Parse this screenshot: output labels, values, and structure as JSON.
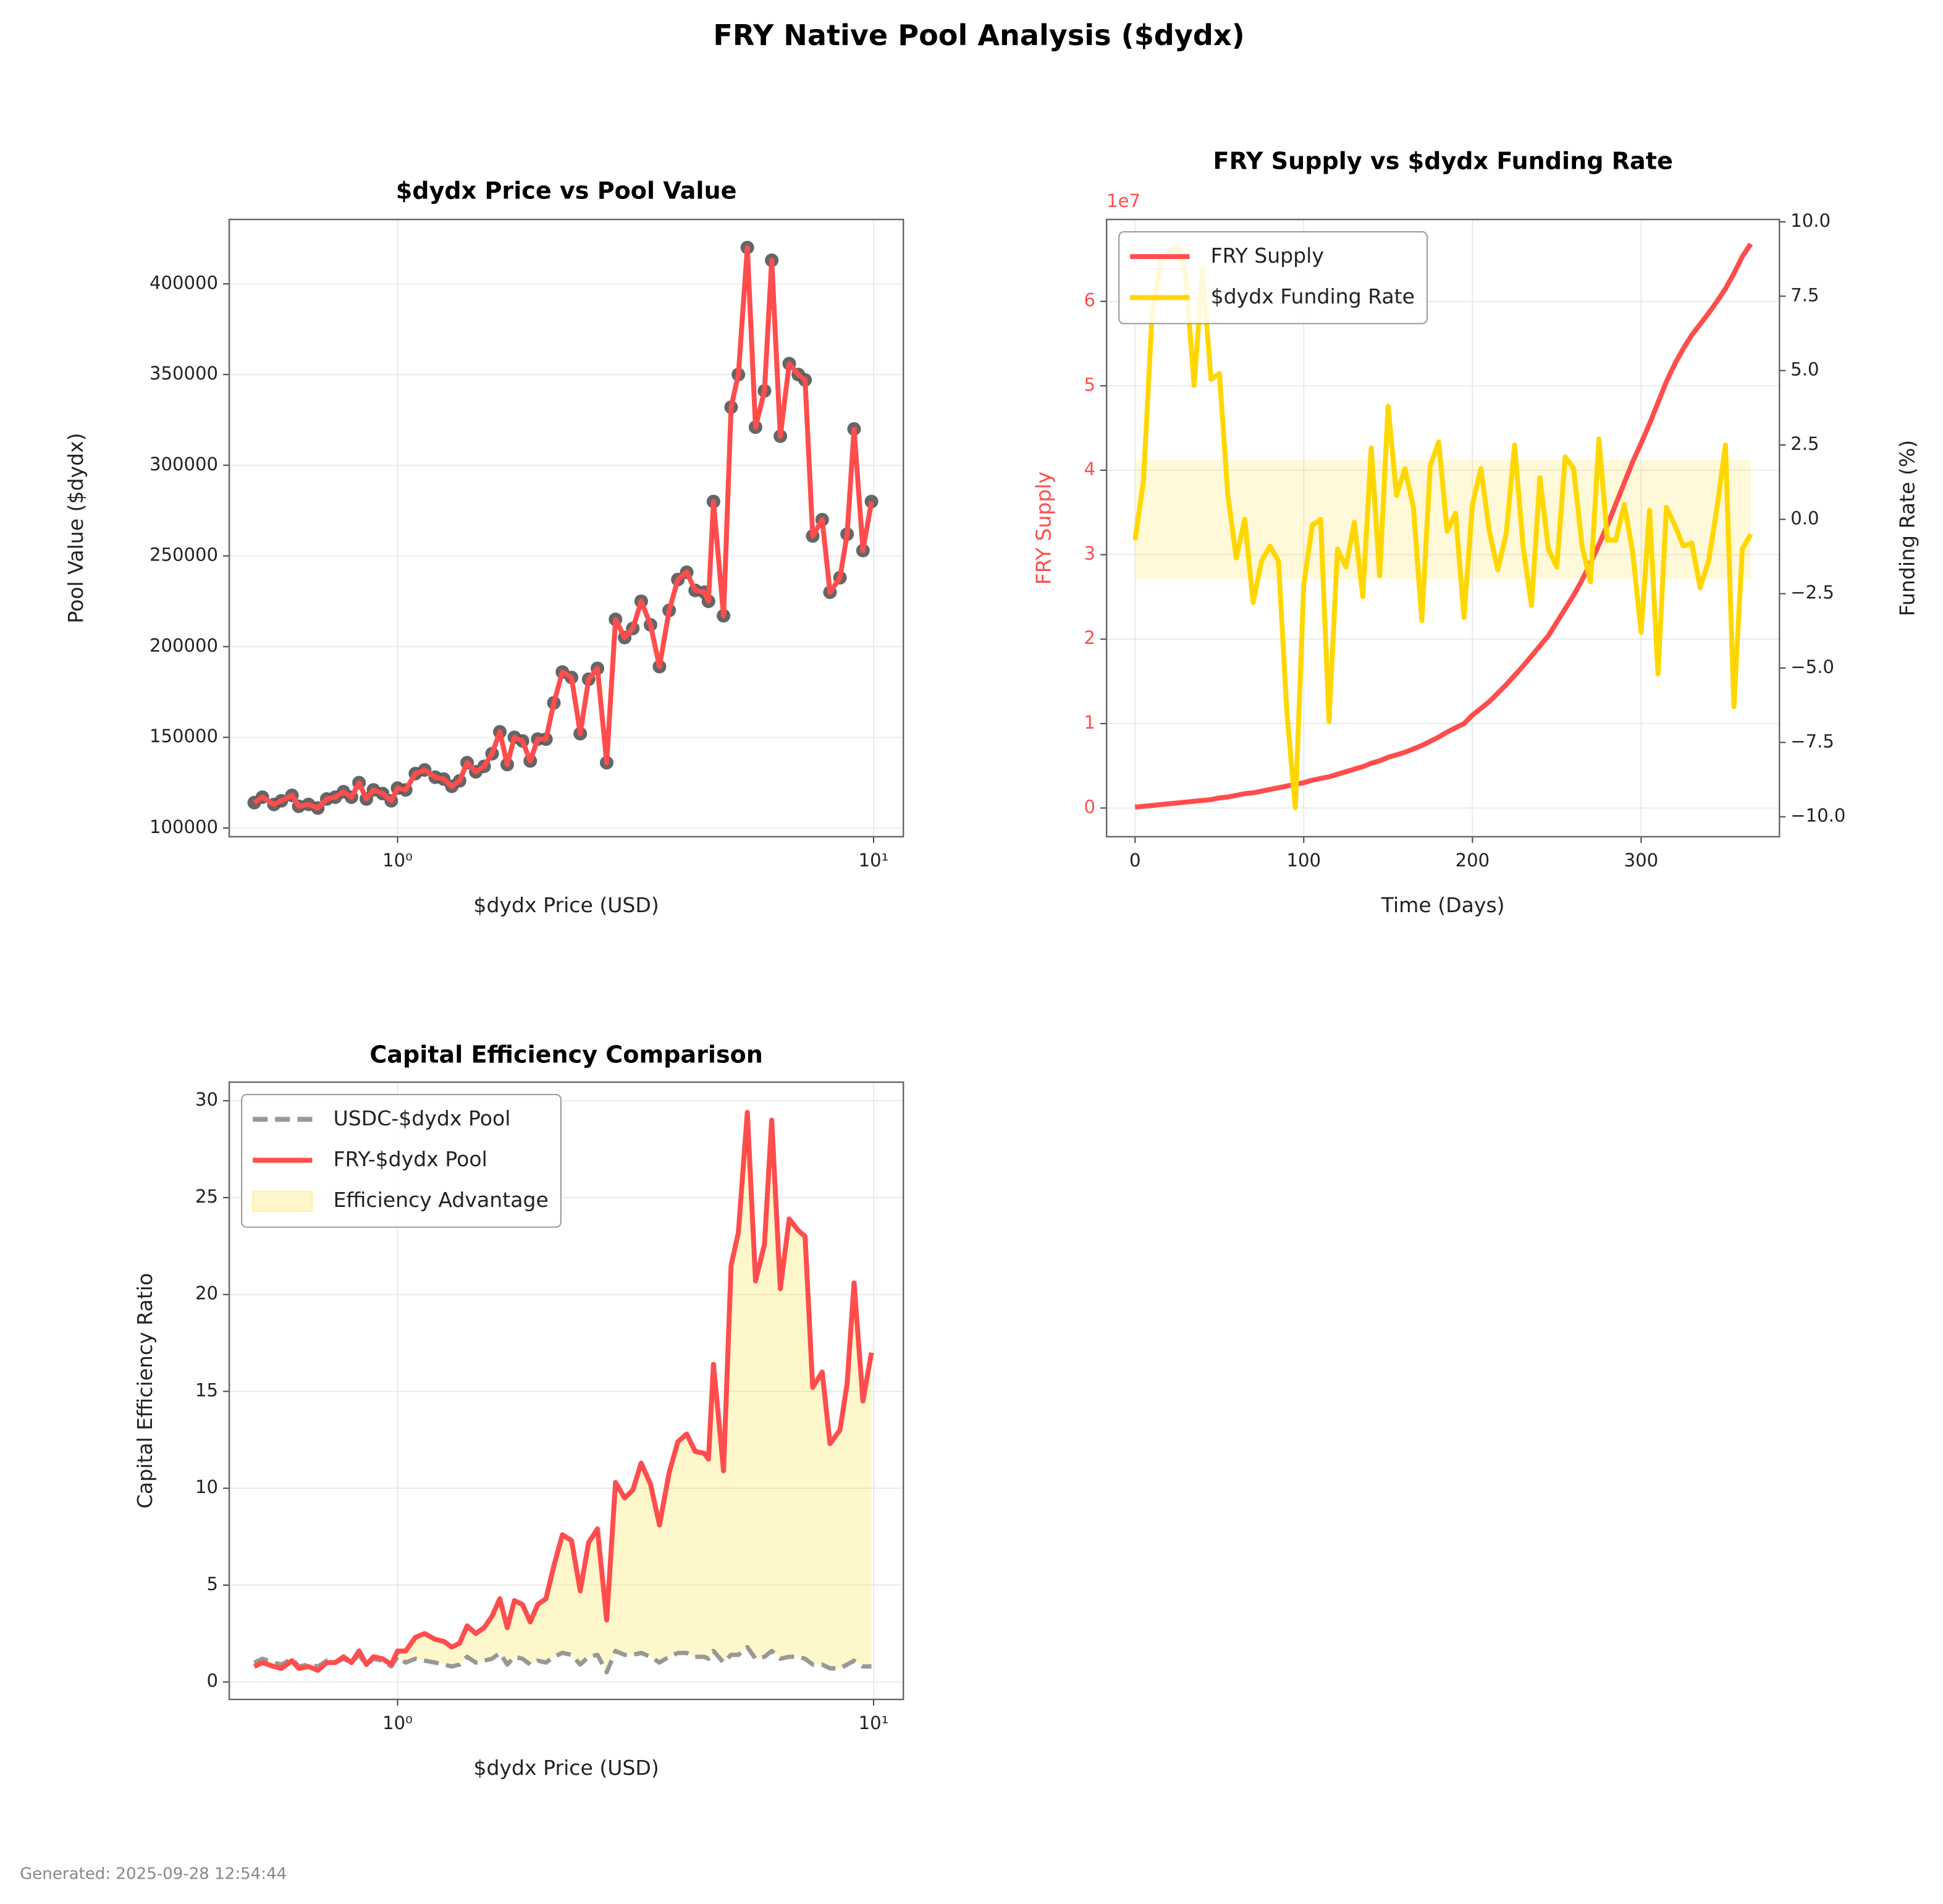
{
  "title": "FRY Native Pool Analysis ($dydx)",
  "footer": "Generated: 2025-09-28 12:54:44",
  "chart_data": [
    {
      "type": "line",
      "title": "$dydx Price vs Pool Value",
      "xlabel": "$dydx Price (USD)",
      "ylabel": "Pool Value ($dydx)",
      "xscale": "log",
      "grid": true,
      "x": [
        0.5,
        0.52,
        0.55,
        0.57,
        0.6,
        0.62,
        0.65,
        0.68,
        0.71,
        0.74,
        0.77,
        0.8,
        0.83,
        0.86,
        0.89,
        0.93,
        0.97,
        1.0,
        1.04,
        1.09,
        1.14,
        1.2,
        1.25,
        1.3,
        1.35,
        1.4,
        1.46,
        1.52,
        1.58,
        1.64,
        1.7,
        1.76,
        1.83,
        1.9,
        1.97,
        2.05,
        2.13,
        2.22,
        2.32,
        2.42,
        2.52,
        2.63,
        2.75,
        2.87,
        3.0,
        3.12,
        3.25,
        3.4,
        3.55,
        3.72,
        3.88,
        4.05,
        4.22,
        4.41,
        4.5,
        4.61,
        4.84,
        5.02,
        5.2,
        5.43,
        5.65,
        5.9,
        6.11,
        6.37,
        6.65,
        6.95,
        7.18,
        7.45,
        7.8,
        8.1,
        8.5,
        8.8,
        9.1,
        9.5,
        9.9
      ],
      "series": [
        {
          "color": "#ff4d4d",
          "marker_color": "#555555",
          "values": [
            114000,
            117000,
            113000,
            115000,
            118000,
            112000,
            113000,
            111000,
            116000,
            117000,
            120000,
            117000,
            125000,
            116000,
            121000,
            119000,
            115000,
            122000,
            121000,
            130000,
            132000,
            128000,
            127000,
            123000,
            126000,
            136000,
            131000,
            134000,
            141000,
            153000,
            135000,
            150000,
            148000,
            137000,
            149000,
            149000,
            169000,
            186000,
            183000,
            152000,
            182000,
            188000,
            136000,
            215000,
            205000,
            210000,
            225000,
            212000,
            189000,
            220000,
            237000,
            241000,
            231000,
            230000,
            225000,
            280000,
            217000,
            332000,
            350000,
            420000,
            321000,
            341000,
            413000,
            316000,
            356000,
            350000,
            347000,
            261000,
            270000,
            230000,
            238000,
            262000,
            320000,
            253000,
            280000
          ]
        }
      ],
      "xlim": [
        0.443,
        11.55
      ],
      "ylim": [
        95200,
        435500
      ],
      "xticks": [
        {
          "value": 1,
          "label": "10⁰"
        },
        {
          "value": 10,
          "label": "10¹"
        }
      ],
      "yticks": [
        100000,
        150000,
        200000,
        250000,
        300000,
        350000,
        400000
      ]
    },
    {
      "type": "line",
      "title": "FRY Supply vs $dydx Funding Rate",
      "xlabel": "Time (Days)",
      "ylabel": "FRY Supply",
      "ylabel_color": "#ff4d4d",
      "y2label": "Funding Rate (%)",
      "y_offset_label": "1e7",
      "grid": true,
      "legend": "upper left",
      "x": [
        0,
        5,
        10,
        15,
        20,
        25,
        30,
        35,
        40,
        45,
        50,
        55,
        60,
        65,
        70,
        75,
        80,
        85,
        90,
        95,
        100,
        105,
        110,
        115,
        120,
        125,
        130,
        135,
        140,
        145,
        150,
        155,
        160,
        165,
        170,
        175,
        180,
        185,
        190,
        195,
        200,
        205,
        210,
        215,
        220,
        225,
        230,
        235,
        240,
        245,
        250,
        255,
        260,
        265,
        270,
        275,
        280,
        285,
        290,
        295,
        300,
        305,
        310,
        315,
        320,
        325,
        330,
        335,
        340,
        345,
        350,
        355,
        360,
        365
      ],
      "series": [
        {
          "name": "FRY Supply",
          "color": "#ff4d4d",
          "values": [
            100000,
            200000,
            300000,
            400000,
            500000,
            600000,
            700000,
            800000,
            900000,
            1000000,
            1200000,
            1300000,
            1500000,
            1700000,
            1800000,
            2000000,
            2200000,
            2400000,
            2600000,
            2800000,
            3000000,
            3300000,
            3500000,
            3700000,
            4000000,
            4300000,
            4600000,
            4900000,
            5300000,
            5600000,
            6000000,
            6300000,
            6600000,
            7000000,
            7400000,
            7900000,
            8400000,
            9000000,
            9500000,
            10000000,
            11000000,
            11800000,
            12600000,
            13600000,
            14600000,
            15700000,
            16800000,
            18000000,
            19200000,
            20400000,
            22000000,
            23600000,
            25200000,
            27000000,
            29000000,
            31200000,
            33500000,
            36000000,
            38500000,
            41000000,
            43200000,
            45500000,
            48000000,
            50500000,
            52600000,
            54400000,
            56000000,
            57300000,
            58600000,
            60000000,
            61500000,
            63300000,
            65300000,
            66800000
          ]
        },
        {
          "name": "$dydx Funding Rate",
          "color": "#ffd700",
          "axis": "y2",
          "values": [
            -0.7,
            1.3,
            6.8,
            8.6,
            9.0,
            9.2,
            8.2,
            4.5,
            8.4,
            4.7,
            4.9,
            0.8,
            -1.3,
            0.0,
            -2.8,
            -1.4,
            -0.9,
            -1.4,
            -6.5,
            -9.7,
            -2.2,
            -0.2,
            0.0,
            -6.8,
            -1.0,
            -1.6,
            -0.1,
            -2.6,
            2.4,
            -1.9,
            3.8,
            0.8,
            1.7,
            0.4,
            -3.4,
            1.8,
            2.6,
            -0.4,
            0.2,
            -3.3,
            0.5,
            1.7,
            -0.4,
            -1.7,
            -0.5,
            2.5,
            -0.9,
            -2.9,
            1.4,
            -1.0,
            -1.6,
            2.1,
            1.7,
            -0.9,
            -2.1,
            2.7,
            -0.7,
            -0.7,
            0.5,
            -1.1,
            -3.8,
            0.3,
            -5.2,
            0.4,
            -0.2,
            -0.9,
            -0.8,
            -2.3,
            -1.4,
            0.4,
            2.5,
            -6.3,
            -1.0,
            -0.5
          ]
        }
      ],
      "band": {
        "x": [
          0,
          365
        ],
        "y2": [
          -2,
          2
        ],
        "color": "#ffd700"
      },
      "xlim": [
        -16.9,
        382
      ],
      "ylim": [
        -3400000,
        69700000
      ],
      "y2lim": [
        -10.67,
        10.08
      ],
      "xticks": [
        0,
        100,
        200,
        300
      ],
      "yticks": [
        0,
        {
          "value": 10000000,
          "label": "1"
        },
        {
          "value": 20000000,
          "label": "2"
        },
        {
          "value": 30000000,
          "label": "3"
        },
        {
          "value": 40000000,
          "label": "4"
        },
        {
          "value": 50000000,
          "label": "5"
        },
        {
          "value": 60000000,
          "label": "6"
        }
      ],
      "y2ticks": [
        {
          "value": -10,
          "label": "−10.0"
        },
        {
          "value": -7.5,
          "label": "−7.5"
        },
        {
          "value": -5,
          "label": "−5.0"
        },
        {
          "value": -2.5,
          "label": "−2.5"
        },
        {
          "value": 0,
          "label": "0.0"
        },
        {
          "value": 2.5,
          "label": "2.5"
        },
        {
          "value": 5,
          "label": "5.0"
        },
        {
          "value": 7.5,
          "label": "7.5"
        },
        {
          "value": 10,
          "label": "10.0"
        }
      ]
    },
    {
      "type": "line",
      "title": "Capital Efficiency Comparison",
      "xlabel": "$dydx Price (USD)",
      "ylabel": "Capital Efficiency Ratio",
      "xscale": "log",
      "grid": true,
      "legend": "upper left",
      "x": [
        0.5,
        0.52,
        0.55,
        0.57,
        0.6,
        0.62,
        0.65,
        0.68,
        0.71,
        0.74,
        0.77,
        0.8,
        0.83,
        0.86,
        0.89,
        0.93,
        0.97,
        1.0,
        1.04,
        1.09,
        1.14,
        1.2,
        1.25,
        1.3,
        1.35,
        1.4,
        1.46,
        1.52,
        1.58,
        1.64,
        1.7,
        1.76,
        1.83,
        1.9,
        1.97,
        2.05,
        2.13,
        2.22,
        2.32,
        2.42,
        2.52,
        2.63,
        2.75,
        2.87,
        3.0,
        3.12,
        3.25,
        3.4,
        3.55,
        3.72,
        3.88,
        4.05,
        4.22,
        4.41,
        4.5,
        4.61,
        4.84,
        5.02,
        5.2,
        5.43,
        5.65,
        5.9,
        6.11,
        6.37,
        6.65,
        6.95,
        7.18,
        7.45,
        7.8,
        8.1,
        8.5,
        8.8,
        9.1,
        9.5,
        9.9
      ],
      "series": [
        {
          "name": "USDC-$dydx Pool",
          "color": "#808080",
          "dashed": true,
          "values": [
            1.0,
            1.2,
            1.0,
            0.9,
            1.2,
            0.8,
            0.9,
            0.8,
            1.1,
            1.0,
            1.2,
            1.0,
            1.4,
            0.9,
            1.2,
            1.1,
            0.8,
            1.3,
            1.0,
            1.2,
            1.1,
            1.0,
            0.9,
            0.8,
            0.9,
            1.3,
            1.0,
            1.1,
            1.2,
            1.5,
            0.9,
            1.3,
            1.2,
            0.9,
            1.1,
            1.0,
            1.3,
            1.5,
            1.4,
            0.9,
            1.3,
            1.4,
            0.5,
            1.6,
            1.4,
            1.4,
            1.5,
            1.3,
            1.0,
            1.3,
            1.5,
            1.5,
            1.3,
            1.3,
            1.2,
            1.6,
            1.0,
            1.4,
            1.4,
            1.8,
            1.2,
            1.3,
            1.6,
            1.2,
            1.3,
            1.3,
            1.2,
            0.9,
            0.9,
            0.7,
            0.7,
            0.9,
            1.1,
            0.8,
            0.8
          ]
        },
        {
          "name": "FRY-$dydx Pool",
          "color": "#ff4d4d",
          "values": [
            0.8,
            1.0,
            0.8,
            0.7,
            1.1,
            0.7,
            0.8,
            0.6,
            1.0,
            1.0,
            1.3,
            1.0,
            1.6,
            0.9,
            1.3,
            1.2,
            0.9,
            1.6,
            1.6,
            2.3,
            2.5,
            2.2,
            2.1,
            1.8,
            2.0,
            2.9,
            2.5,
            2.8,
            3.4,
            4.3,
            2.8,
            4.2,
            4.0,
            3.1,
            4.0,
            4.3,
            6.0,
            7.6,
            7.3,
            4.7,
            7.2,
            7.9,
            3.2,
            10.3,
            9.5,
            9.9,
            11.3,
            10.2,
            8.1,
            10.8,
            12.4,
            12.8,
            11.9,
            11.8,
            11.5,
            16.4,
            10.9,
            21.5,
            23.2,
            29.4,
            20.7,
            22.6,
            29.0,
            20.3,
            23.9,
            23.3,
            23.0,
            15.2,
            16.0,
            12.3,
            13.0,
            15.4,
            20.6,
            14.5,
            17.0
          ]
        }
      ],
      "fill": {
        "name": "Efficiency Advantage",
        "color": "#ffd700"
      },
      "xlim": [
        0.443,
        11.55
      ],
      "ylim": [
        -0.9,
        30.96
      ],
      "xticks": [
        {
          "value": 1,
          "label": "10⁰"
        },
        {
          "value": 10,
          "label": "10¹"
        }
      ],
      "yticks": [
        0,
        5,
        10,
        15,
        20,
        25,
        30
      ]
    }
  ]
}
